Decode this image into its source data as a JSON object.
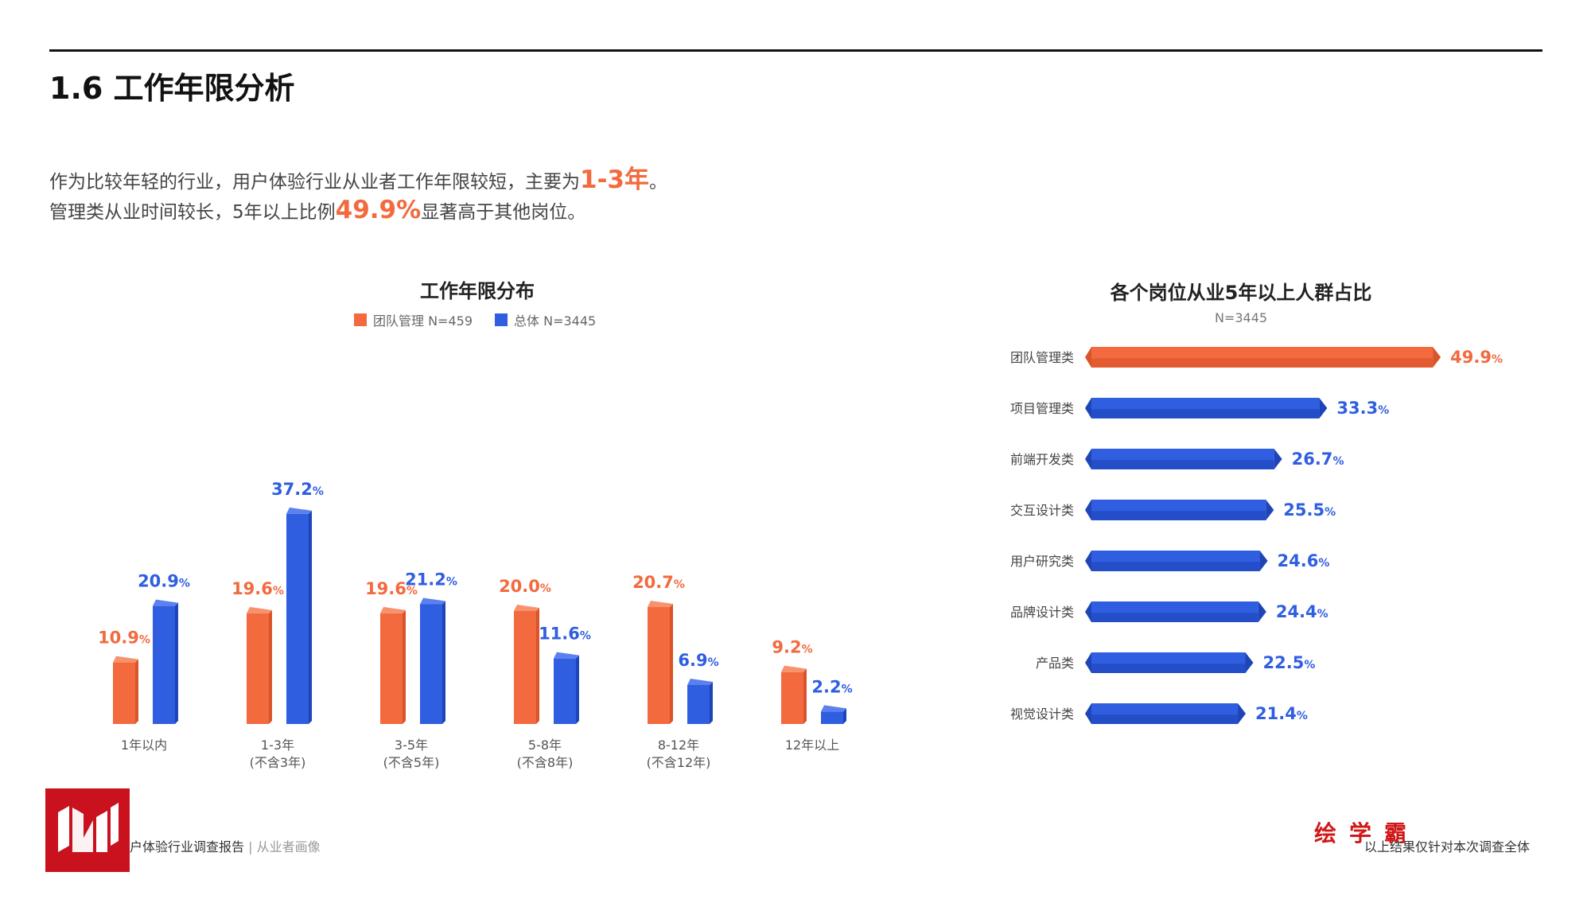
{
  "page": {
    "section_title": "1.6 工作年限分析",
    "intro_line1_a": "作为比较年轻的行业，用户体验行业从业者工作年限较短，主要为",
    "intro_line1_hl": "1-3年",
    "intro_line1_b": "。",
    "intro_line2_a": "管理类从业时间较长，5年以上比例",
    "intro_line2_hl": "49.9%",
    "intro_line2_b": "显著高于其他岗位。"
  },
  "colors": {
    "orange": "#f26a3e",
    "blue": "#2f5ee0",
    "orange_dark": "#d9542a",
    "blue_dark": "#1e45b8"
  },
  "chart_data": [
    {
      "type": "bar",
      "title": "工作年限分布",
      "categories": [
        "1年以内",
        "1-3年\n(不含3年)",
        "3-5年\n(不含5年)",
        "5-8年\n(不含8年)",
        "8-12年\n(不含12年)",
        "12年以上"
      ],
      "series": [
        {
          "name": "团队管理 N=459",
          "values": [
            10.9,
            19.6,
            19.6,
            20.0,
            20.7,
            9.2
          ]
        },
        {
          "name": "总体 N=3445",
          "values": [
            20.9,
            37.2,
            21.2,
            11.6,
            6.9,
            2.2
          ]
        }
      ],
      "value_suffix": "%",
      "legend": "top-center",
      "grid": false
    },
    {
      "type": "bar",
      "orientation": "horizontal",
      "title": "各个岗位从业5年以上人群占比",
      "subtitle": "N=3445",
      "categories": [
        "团队管理类",
        "项目管理类",
        "前端开发类",
        "交互设计类",
        "用户研究类",
        "品牌设计类",
        "产品类",
        "视觉设计类"
      ],
      "values": [
        49.9,
        33.3,
        26.7,
        25.5,
        24.6,
        24.4,
        22.5,
        21.4
      ],
      "value_suffix": "%",
      "highlight_index": 0,
      "grid": false
    }
  ],
  "footer": {
    "report_title": "户体验行业调查报告",
    "separator": " | ",
    "report_section": "从业者画像",
    "note": "以上结果仅针对本次调查全体",
    "watermark": "绘学霸"
  }
}
